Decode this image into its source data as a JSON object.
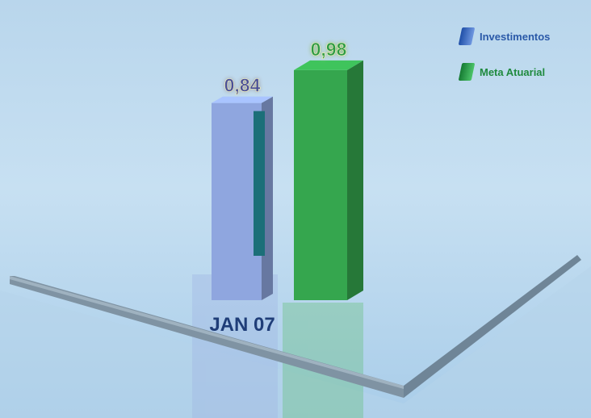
{
  "chart_data": {
    "type": "bar",
    "categories": [
      "JAN 07"
    ],
    "series": [
      {
        "name": "Investimentos",
        "values": [
          0.84
        ],
        "color": "#8fa6df",
        "value_label": "0,84"
      },
      {
        "name": "Meta Atuarial",
        "values": [
          0.98
        ],
        "color": "#35a64e",
        "value_label": "0,98"
      }
    ],
    "ylim": [
      0,
      1.1
    ],
    "grid": false,
    "legend_position": "top-right",
    "style": "3d-bar"
  },
  "legend": {
    "items": [
      {
        "label": "Investimentos",
        "color": "#3f74c9"
      },
      {
        "label": "Meta Atuarial",
        "color": "#2e9a48"
      }
    ]
  }
}
